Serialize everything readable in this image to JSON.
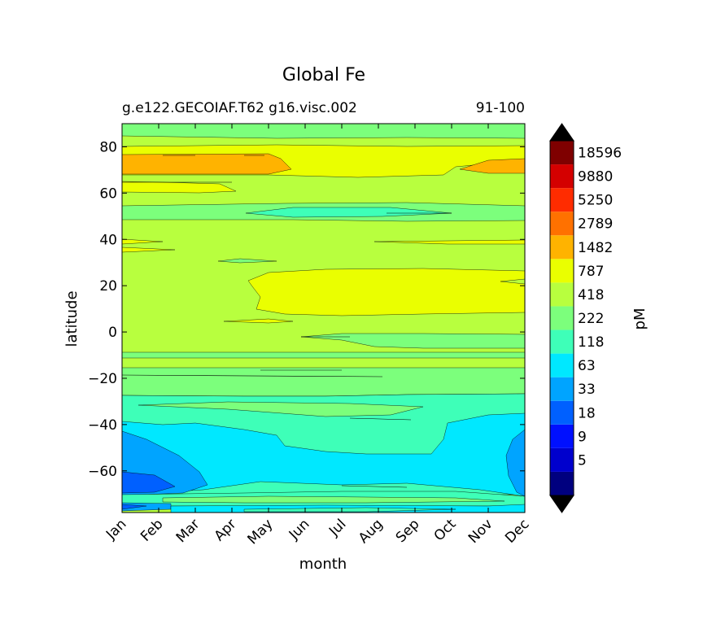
{
  "chart_data": {
    "type": "heatmap",
    "subtype": "filled-contour",
    "title": "Global Fe",
    "subtitle_left": "g.e122.GECOIAF.T62 g16.visc.002",
    "subtitle_right": "91-100",
    "xlabel": "month",
    "ylabel": "latitude",
    "colorbar_label": "pM",
    "x_ticks": [
      "Jan",
      "Feb",
      "Mar",
      "Apr",
      "May",
      "Jun",
      "Jul",
      "Aug",
      "Sep",
      "Oct",
      "Nov",
      "Dec"
    ],
    "y_ticks": [
      {
        "value": 80,
        "label": "80"
      },
      {
        "value": 60,
        "label": "60"
      },
      {
        "value": 40,
        "label": "40"
      },
      {
        "value": 20,
        "label": "20"
      },
      {
        "value": 0,
        "label": "0"
      },
      {
        "value": -20,
        "label": "−20"
      },
      {
        "value": -40,
        "label": "−40"
      },
      {
        "value": -60,
        "label": "−60"
      }
    ],
    "ylim": [
      -78,
      90
    ],
    "levels": [
      {
        "label": "",
        "color": "#00007f"
      },
      {
        "label": "5",
        "color": "#0000cd"
      },
      {
        "label": "9",
        "color": "#0010ff"
      },
      {
        "label": "18",
        "color": "#0060ff"
      },
      {
        "label": "33",
        "color": "#00a4ff"
      },
      {
        "label": "63",
        "color": "#00e8ff"
      },
      {
        "label": "118",
        "color": "#3effb8"
      },
      {
        "label": "222",
        "color": "#7cff7c"
      },
      {
        "label": "418",
        "color": "#b8ff3e"
      },
      {
        "label": "787",
        "color": "#eaff00"
      },
      {
        "label": "1482",
        "color": "#ffb300"
      },
      {
        "label": "2789",
        "color": "#ff7100"
      },
      {
        "label": "5250",
        "color": "#ff2c00"
      },
      {
        "label": "9880",
        "color": "#d40000"
      },
      {
        "label": "18596",
        "color": "#7f0000"
      }
    ],
    "extend": "both",
    "extend_low_color": "#000000",
    "extend_high_color": "#000000"
  }
}
